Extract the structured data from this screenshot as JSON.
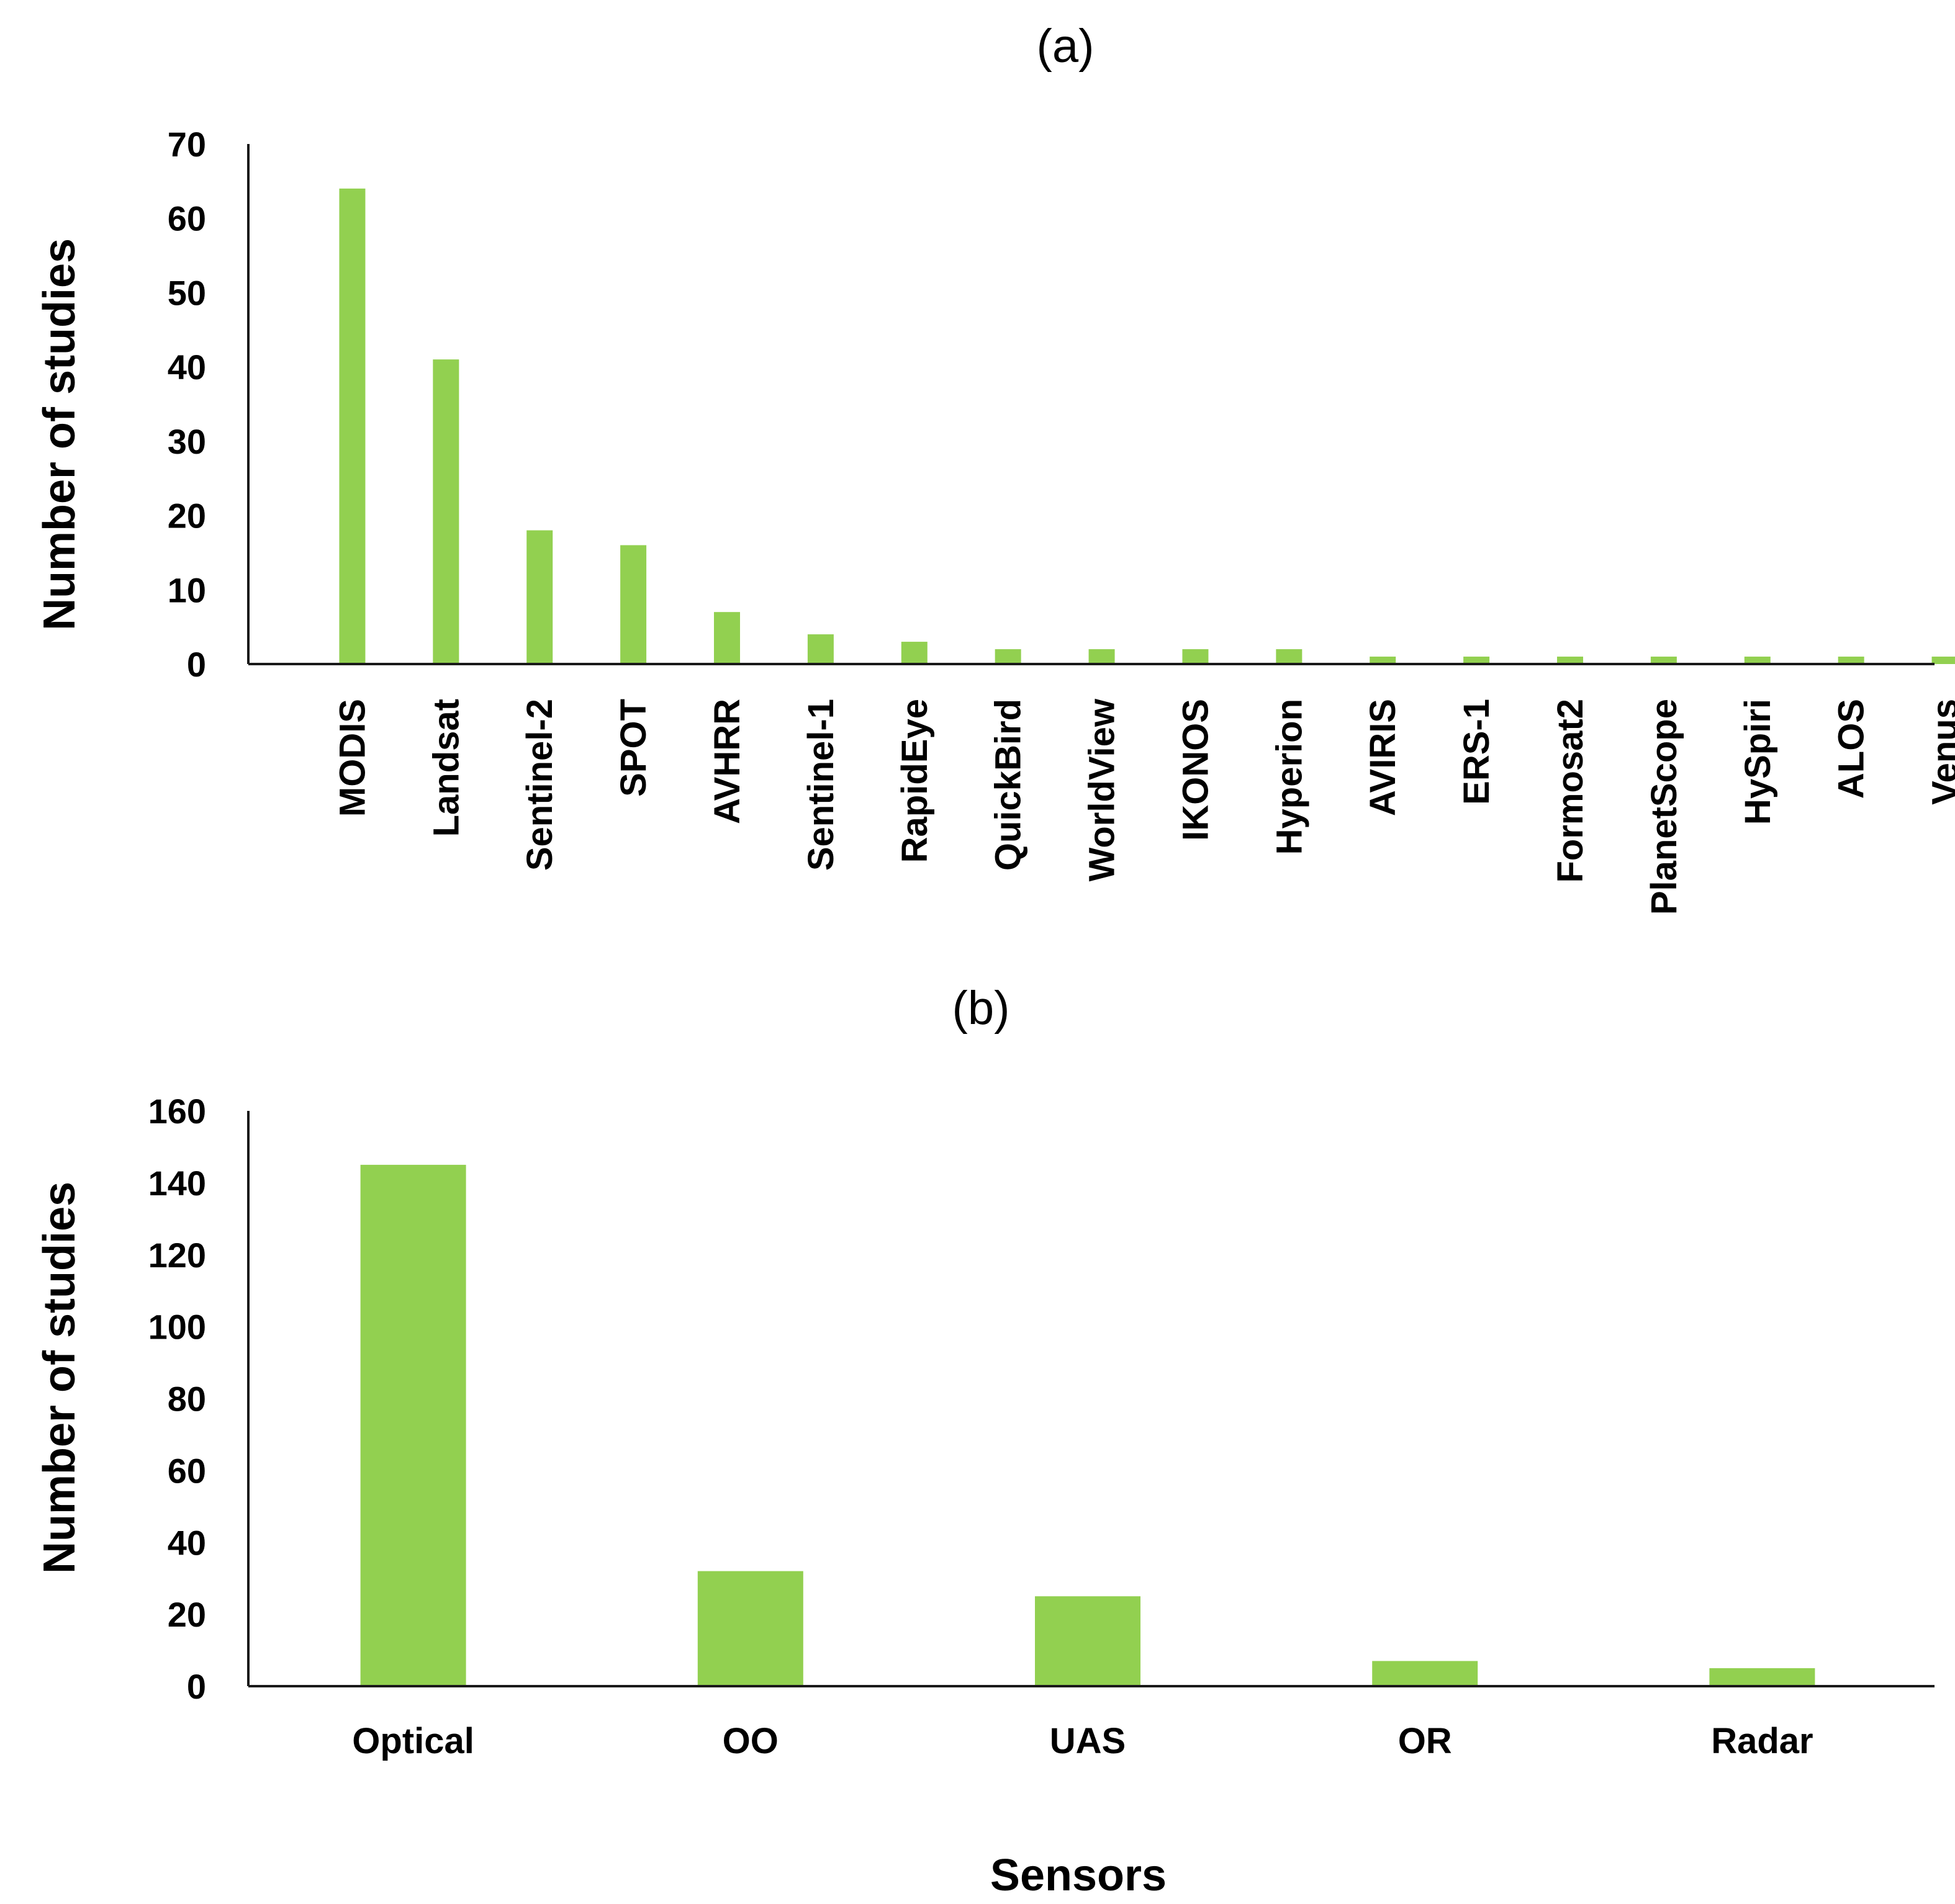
{
  "colors": {
    "bar": "#92d050",
    "axis": "#1a1a1a",
    "text": "#000000"
  },
  "chart_data": [
    {
      "type": "bar",
      "panel_label": "(a)",
      "title": "",
      "xlabel": "",
      "ylabel": "Number of studies",
      "ylim": [
        0,
        70
      ],
      "yticks": [
        "0",
        "10",
        "20",
        "30",
        "40",
        "50",
        "60",
        "70"
      ],
      "grid": false,
      "categories": [
        "MODIS",
        "Landsat",
        "Sentinel-2",
        "SPOT",
        "AVHRR",
        "Sentinel-1",
        "RapidEye",
        "QuickBird",
        "WorldView",
        "IKONOS",
        "Hyperion",
        "AVIRIS",
        "ERS-1",
        "Formosat2",
        "PlanetScope",
        "HySpiri",
        "ALOS",
        "Venus"
      ],
      "values": [
        64,
        41,
        18,
        16,
        7,
        4,
        3,
        2,
        2,
        2,
        2,
        1,
        1,
        1,
        1,
        1,
        1,
        1
      ]
    },
    {
      "type": "bar",
      "panel_label": "(b)",
      "title": "",
      "xlabel": "Sensors",
      "ylabel": "Number of studies",
      "ylim": [
        0,
        160
      ],
      "yticks": [
        "0",
        "20",
        "40",
        "60",
        "80",
        "100",
        "120",
        "140",
        "160"
      ],
      "grid": false,
      "categories": [
        "Optical",
        "OO",
        "UAS",
        "OR",
        "Radar"
      ],
      "values": [
        145,
        32,
        25,
        7,
        5
      ]
    }
  ]
}
